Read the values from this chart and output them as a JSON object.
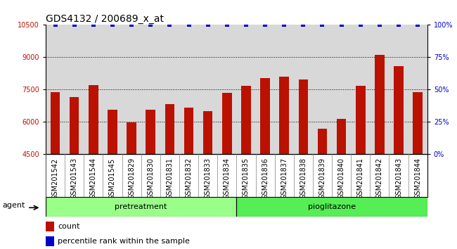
{
  "title": "GDS4132 / 200689_x_at",
  "samples": [
    "GSM201542",
    "GSM201543",
    "GSM201544",
    "GSM201545",
    "GSM201829",
    "GSM201830",
    "GSM201831",
    "GSM201832",
    "GSM201833",
    "GSM201834",
    "GSM201835",
    "GSM201836",
    "GSM201837",
    "GSM201838",
    "GSM201839",
    "GSM201840",
    "GSM201841",
    "GSM201842",
    "GSM201843",
    "GSM201844"
  ],
  "counts": [
    7380,
    7150,
    7720,
    6580,
    5980,
    6580,
    6820,
    6680,
    6520,
    7350,
    7680,
    8050,
    8100,
    7980,
    5680,
    6140,
    7680,
    9100,
    8580,
    7400
  ],
  "group_labels": [
    "pretreatment",
    "pioglitazone"
  ],
  "group_split": 10,
  "group_color_pre": "#99ff88",
  "group_color_pio": "#55ee55",
  "bar_color": "#bb1100",
  "percentile_color": "#0000cc",
  "ylim_left": [
    4500,
    10500
  ],
  "ylim_right": [
    0,
    100
  ],
  "yticks_left": [
    4500,
    6000,
    7500,
    9000,
    10500
  ],
  "yticks_right": [
    0,
    25,
    50,
    75,
    100
  ],
  "bg_color": "#d8d8d8",
  "bar_width": 0.5,
  "title_fontsize": 10,
  "tick_fontsize": 7,
  "label_fontsize": 8,
  "agent_label": "agent"
}
